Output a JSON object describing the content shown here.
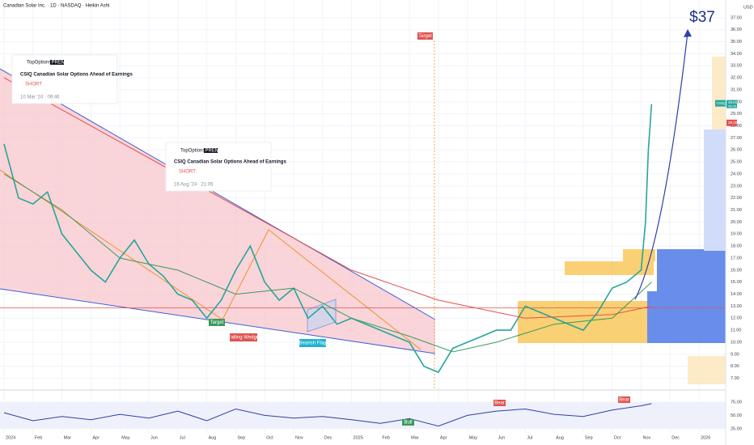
{
  "header": {
    "title": "Canadian Solar Inc. · 1D · NASDAQ · Heikin Ashi",
    "currency": "USD"
  },
  "ideas": [
    {
      "author": "TopOptions",
      "badge": "PREMIUM",
      "title": "CSIQ Canadian Solar Options Ahead of Earnings",
      "side": "SHORT",
      "date": "10 Mar '24 · 09:46"
    },
    {
      "author": "TopOptions",
      "badge": "PREMIUM",
      "title": "CSIQ Canadian Solar Options Ahead of Earnings",
      "side": "SHORT",
      "date": "16 Aug '24 · 21:05"
    }
  ],
  "annotations": [
    "Target",
    "Target",
    "Falling Wedge",
    "Bearish Flag",
    "Bull",
    "Bear",
    "Bear",
    "$37"
  ],
  "price_labels": {
    "symbol": "CSIQ",
    "last": 29.81,
    "countdown": "45:35",
    "line": 28.25
  },
  "chart_data": [
    {
      "type": "line",
      "xlim": [
        -0.14,
        24.92
      ],
      "xticks": [
        {
          "value": 0,
          "label": "2024"
        },
        {
          "value": 1,
          "label": "Feb"
        },
        {
          "value": 2,
          "label": "Mar"
        },
        {
          "value": 3,
          "label": "Apr"
        },
        {
          "value": 4,
          "label": "May"
        },
        {
          "value": 5,
          "label": "Jun"
        },
        {
          "value": 6,
          "label": "Jul"
        },
        {
          "value": 7,
          "label": "Aug"
        },
        {
          "value": 8,
          "label": "Sep"
        },
        {
          "value": 9,
          "label": "Oct"
        },
        {
          "value": 10,
          "label": "Nov"
        },
        {
          "value": 11,
          "label": "Dec"
        },
        {
          "value": 12,
          "label": "2025"
        },
        {
          "value": 13,
          "label": "Feb"
        },
        {
          "value": 14,
          "label": "Mar"
        },
        {
          "value": 15,
          "label": "Apr"
        },
        {
          "value": 16,
          "label": "May"
        },
        {
          "value": 17,
          "label": "Jun"
        },
        {
          "value": 18,
          "label": "Jul"
        },
        {
          "value": 19,
          "label": "Aug"
        },
        {
          "value": 20,
          "label": "Sep"
        },
        {
          "value": 21,
          "label": "Oct"
        },
        {
          "value": 22,
          "label": "Nov"
        },
        {
          "value": 23,
          "label": "Dec"
        },
        {
          "value": 24,
          "label": "2026"
        }
      ],
      "ylim": [
        6.5,
        38
      ],
      "yticks": [
        {
          "value": 7,
          "label": "7.00"
        },
        {
          "value": 8,
          "label": "8.00"
        },
        {
          "value": 9,
          "label": "9.00"
        },
        {
          "value": 10,
          "label": "10.00"
        },
        {
          "value": 11,
          "label": "11.00"
        },
        {
          "value": 12,
          "label": "12.00"
        },
        {
          "value": 13,
          "label": "13.00"
        },
        {
          "value": 14,
          "label": "14.00"
        },
        {
          "value": 15,
          "label": "15.00"
        },
        {
          "value": 16,
          "label": "16.00"
        },
        {
          "value": 17,
          "label": "17.00"
        },
        {
          "value": 18,
          "label": "18.00"
        },
        {
          "value": 19,
          "label": "19.00"
        },
        {
          "value": 20,
          "label": "20.00"
        },
        {
          "value": 21,
          "label": "21.00"
        },
        {
          "value": 22,
          "label": "22.00"
        },
        {
          "value": 23,
          "label": "23.00"
        },
        {
          "value": 24,
          "label": "24.00"
        },
        {
          "value": 25,
          "label": "25.00"
        },
        {
          "value": 26,
          "label": "26.00"
        },
        {
          "value": 27,
          "label": "27.00"
        },
        {
          "value": 28,
          "label": "28.00"
        },
        {
          "value": 29,
          "label": "29.00"
        },
        {
          "value": 30,
          "label": "30.00"
        },
        {
          "value": 31,
          "label": "31.00"
        },
        {
          "value": 32,
          "label": "32.00"
        },
        {
          "value": 33,
          "label": "33.00"
        },
        {
          "value": 34,
          "label": "34.00"
        },
        {
          "value": 35,
          "label": "35.00"
        },
        {
          "value": 36,
          "label": "36.00"
        },
        {
          "value": 37,
          "label": "37.00"
        }
      ],
      "grid": true,
      "hline": 12.85,
      "series": [
        {
          "color": "#26a69a",
          "x": [
            0,
            0.5,
            1,
            1.5,
            2,
            2.5,
            3,
            3.5,
            4,
            4.5,
            5,
            5.5,
            6,
            6.5,
            7,
            7.5,
            8,
            8.5,
            9,
            9.5,
            10,
            10.5,
            11,
            11.5,
            12,
            12.5,
            13,
            13.5,
            14,
            14.5,
            15,
            15.5,
            16,
            16.5,
            17,
            17.5,
            18,
            18.5,
            19,
            19.5,
            20,
            20.5,
            21,
            21.5,
            22,
            22.15,
            22.25,
            22.36
          ],
          "values": [
            26.5,
            22,
            21.5,
            22.5,
            19,
            17.5,
            16,
            15,
            17,
            18.5,
            16.5,
            15.5,
            14,
            13.5,
            12,
            13.5,
            16,
            18,
            15,
            13.5,
            14.5,
            12,
            13,
            11.5,
            12,
            11.5,
            11,
            10.5,
            10,
            8,
            7.5,
            9.5,
            10,
            10.5,
            11,
            11,
            13,
            12.5,
            12,
            11.5,
            11,
            12.5,
            14.5,
            15,
            16,
            20,
            26,
            29.81
          ]
        },
        {
          "color": "#e0524f",
          "x": [
            0,
            3,
            6,
            9,
            12,
            15,
            18,
            21,
            22.36
          ],
          "values": [
            32,
            28,
            24,
            20,
            16,
            13.5,
            12,
            12.3,
            13
          ]
        },
        {
          "color": "#3a9a5b",
          "x": [
            0,
            2,
            4,
            6,
            8,
            10,
            12,
            14,
            15.5,
            17,
            19,
            21,
            22.36
          ],
          "values": [
            24,
            21,
            17,
            16,
            14,
            14.5,
            12,
            10.5,
            9.2,
            10,
            11.5,
            12,
            15
          ]
        }
      ]
    },
    {
      "type": "line",
      "xlim": [
        -0.14,
        24.92
      ],
      "ylim": [
        15,
        90
      ],
      "yticks": [
        {
          "value": 25,
          "label": "25.00"
        },
        {
          "value": 50,
          "label": "50.00"
        },
        {
          "value": 75,
          "label": "75.00"
        }
      ],
      "series": [
        {
          "color": "#2f3fa8",
          "x": [
            0,
            1,
            2,
            3,
            4,
            5,
            6,
            7,
            8,
            9,
            10,
            11,
            12,
            13,
            14,
            15,
            16,
            17,
            18,
            19,
            20,
            21,
            22,
            22.36
          ],
          "values": [
            55,
            40,
            48,
            42,
            52,
            45,
            58,
            40,
            62,
            50,
            45,
            48,
            42,
            35,
            44,
            30,
            50,
            58,
            62,
            52,
            48,
            60,
            68,
            72
          ]
        }
      ]
    }
  ]
}
